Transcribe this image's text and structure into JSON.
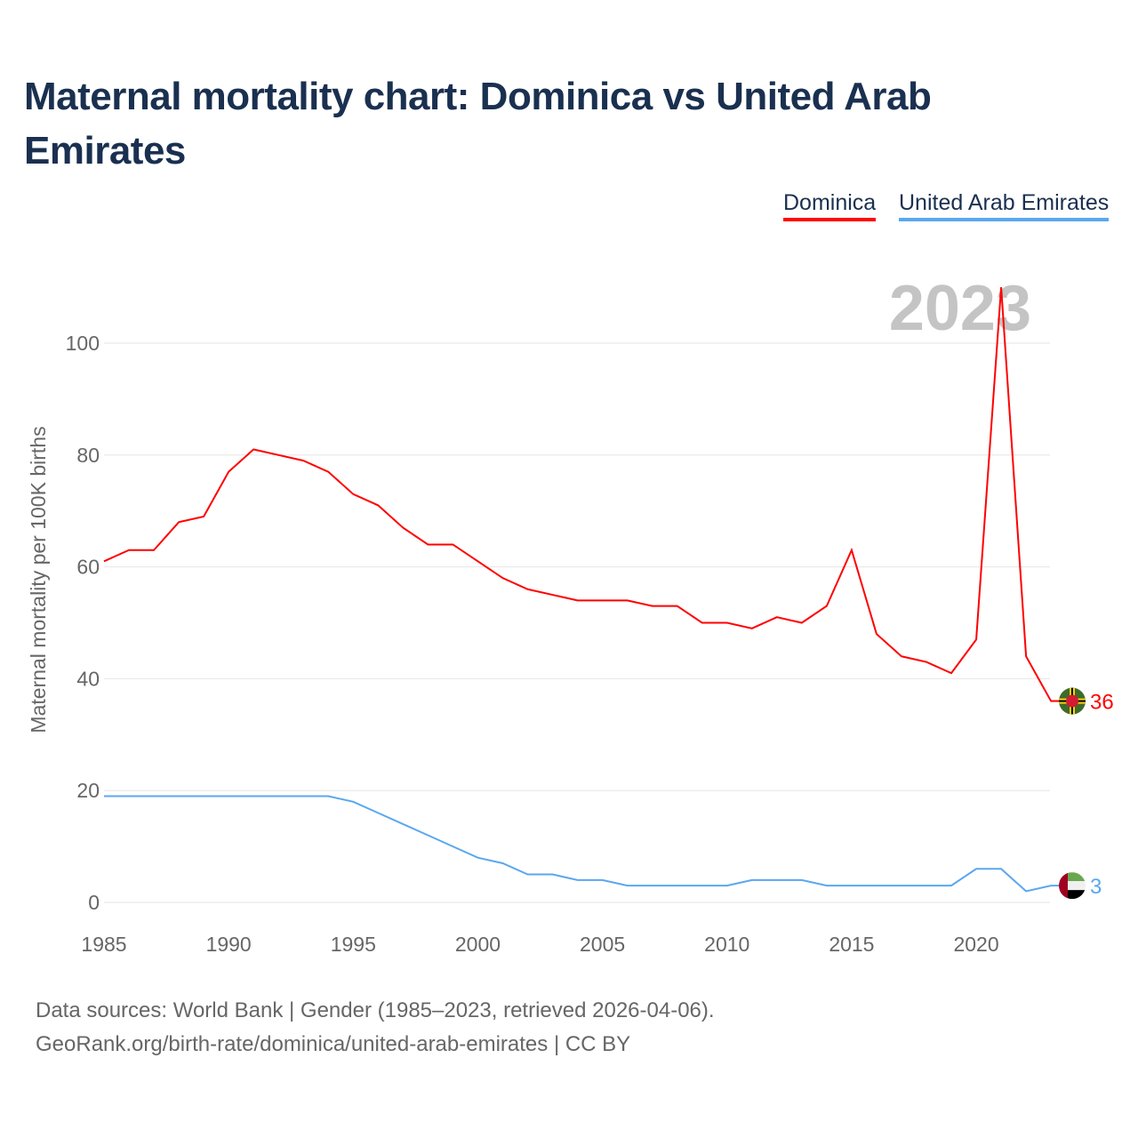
{
  "title": "Maternal mortality chart: Dominica vs United Arab Emirates",
  "year_watermark": "2023",
  "source_line1": "Data sources: World Bank | Gender (1985–2023, retrieved 2026-04-06).",
  "source_line2": "GeoRank.org/birth-rate/dominica/united-arab-emirates | CC BY",
  "chart_data": {
    "type": "line",
    "title": "Maternal mortality chart: Dominica vs United Arab Emirates",
    "ylabel": "Maternal mortality per 100K births",
    "xlabel": "",
    "ylim": [
      0,
      110
    ],
    "yticks": [
      0,
      20,
      40,
      60,
      80,
      100
    ],
    "xticks": [
      1985,
      1990,
      1995,
      2000,
      2005,
      2010,
      2015,
      2020
    ],
    "grid": true,
    "legend": "top-right",
    "x": [
      1985,
      1986,
      1987,
      1988,
      1989,
      1990,
      1991,
      1992,
      1993,
      1994,
      1995,
      1996,
      1997,
      1998,
      1999,
      2000,
      2001,
      2002,
      2003,
      2004,
      2005,
      2006,
      2007,
      2008,
      2009,
      2010,
      2011,
      2012,
      2013,
      2014,
      2015,
      2016,
      2017,
      2018,
      2019,
      2020,
      2021,
      2022,
      2023
    ],
    "series": [
      {
        "name": "Dominica",
        "color": "#ff0000",
        "end_label": "36",
        "values": [
          61,
          63,
          63,
          68,
          69,
          77,
          81,
          80,
          79,
          77,
          73,
          71,
          67,
          64,
          64,
          61,
          58,
          56,
          55,
          54,
          54,
          54,
          53,
          53,
          50,
          50,
          49,
          51,
          50,
          53,
          63,
          48,
          44,
          43,
          41,
          47,
          110,
          44,
          36
        ]
      },
      {
        "name": "United Arab Emirates",
        "color": "#5aa7f0",
        "end_label": "3",
        "values": [
          19,
          19,
          19,
          19,
          19,
          19,
          19,
          19,
          19,
          19,
          18,
          16,
          14,
          12,
          10,
          8,
          7,
          5,
          5,
          4,
          4,
          3,
          3,
          3,
          3,
          3,
          4,
          4,
          4,
          3,
          3,
          3,
          3,
          3,
          3,
          6,
          6,
          2,
          3
        ]
      }
    ]
  }
}
